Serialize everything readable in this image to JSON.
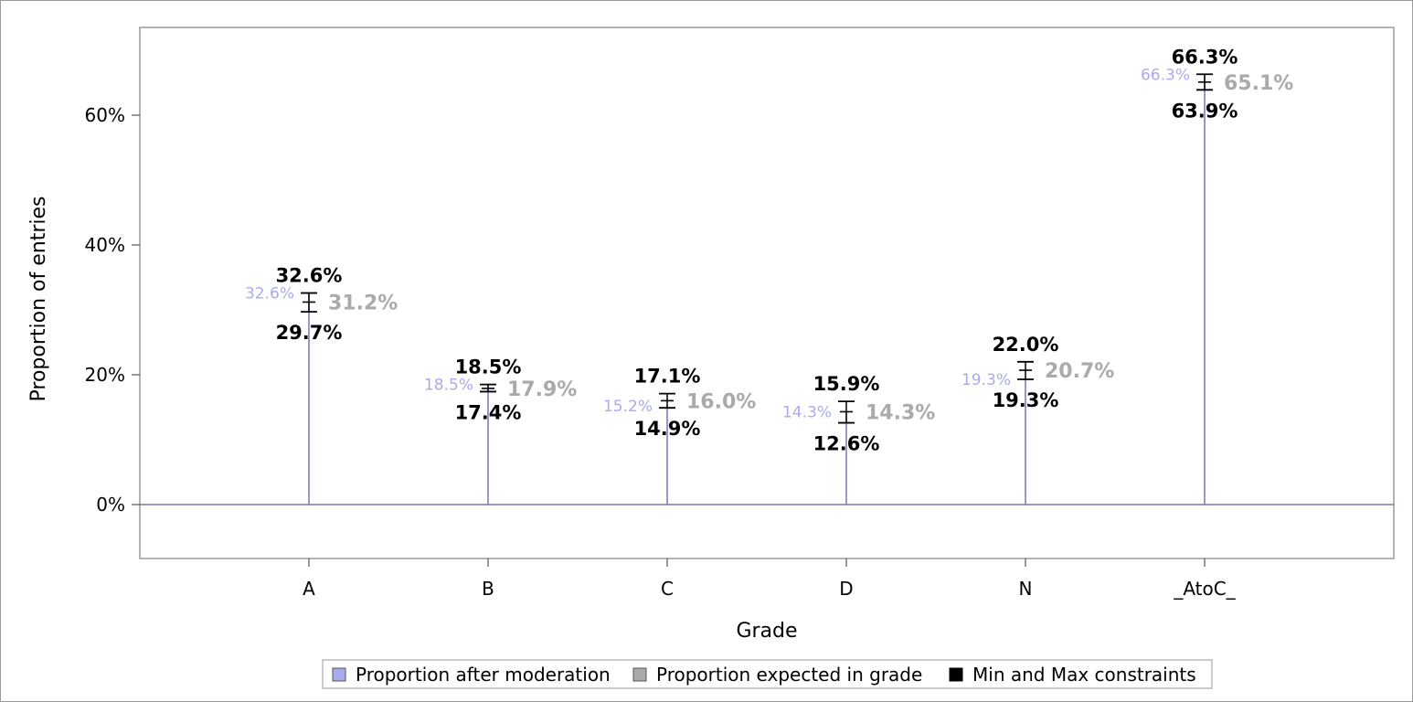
{
  "chart_data": {
    "type": "bar",
    "title": "",
    "xlabel": "Grade",
    "ylabel": "Proportion of entries",
    "ylim": [
      -8.5,
      73.5
    ],
    "yticks": [
      "0%",
      "20%",
      "40%",
      "60%"
    ],
    "ytick_values": [
      0,
      20,
      40,
      60
    ],
    "categories": [
      "A",
      "B",
      "C",
      "D",
      "N",
      "_AtoC_"
    ],
    "series": [
      {
        "name": "Proportion after moderation",
        "color": "#aaaaee",
        "line_color": "#7777bb",
        "values": [
          32.6,
          18.5,
          15.2,
          14.3,
          19.3,
          66.3
        ],
        "labels": [
          "32.6%",
          "18.5%",
          "15.2%",
          "14.3%",
          "19.3%",
          "66.3%"
        ]
      },
      {
        "name": "Proportion expected in grade",
        "color": "#aaaaaa",
        "values": [
          31.2,
          17.9,
          16.0,
          14.3,
          20.7,
          65.1
        ],
        "labels": [
          "31.2%",
          "17.9%",
          "16.0%",
          "14.3%",
          "20.7%",
          "65.1%"
        ]
      },
      {
        "name": "Min and Max constraints",
        "color": "#000000",
        "max": [
          32.6,
          18.5,
          17.1,
          15.9,
          22.0,
          66.3
        ],
        "min": [
          29.7,
          17.4,
          14.9,
          12.6,
          19.3,
          63.9
        ],
        "max_labels": [
          "32.6%",
          "18.5%",
          "17.1%",
          "15.9%",
          "22.0%",
          "66.3%"
        ],
        "min_labels": [
          "29.7%",
          "17.4%",
          "14.9%",
          "12.6%",
          "19.3%",
          "63.9%"
        ]
      }
    ],
    "grid": false,
    "legend_position": "bottom"
  }
}
